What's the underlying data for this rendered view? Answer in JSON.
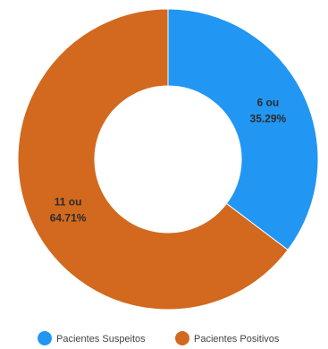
{
  "chart_data": {
    "type": "pie",
    "donut": true,
    "title": "",
    "legend_position": "bottom",
    "slices": [
      {
        "name": "Pacientes Suspeitos",
        "value": 6,
        "percent": 35.29,
        "label_line1": "6 ou",
        "label_line2": "35.29%",
        "color": "#2196F3"
      },
      {
        "name": "Pacientes Positivos",
        "value": 11,
        "percent": 64.71,
        "label_line1": "11 ou",
        "label_line2": "64.71%",
        "color": "#D2691E"
      }
    ]
  }
}
